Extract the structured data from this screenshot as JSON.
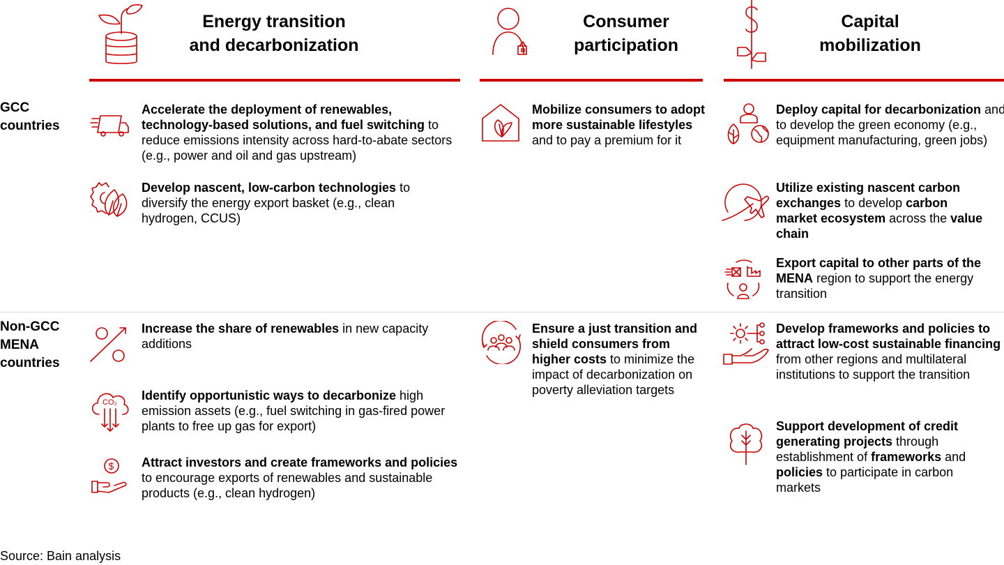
{
  "columns": [
    {
      "id": "energy",
      "title_line1": "Energy transition",
      "title_line2": "and decarbonization",
      "icon": "plant-coins-icon"
    },
    {
      "id": "consumer",
      "title_line1": "Consumer",
      "title_line2": "participation",
      "icon": "person-wallet-icon"
    },
    {
      "id": "capital",
      "title_line1": "Capital",
      "title_line2": "mobilization",
      "icon": "dollar-plant-icon"
    }
  ],
  "rows": [
    {
      "id": "gcc",
      "label_lines": [
        "GCC",
        "countries"
      ]
    },
    {
      "id": "nongcc",
      "label_lines": [
        "Non-GCC",
        "MENA",
        "countries"
      ]
    }
  ],
  "items": {
    "gcc_energy_1": {
      "icon": "truck-icon",
      "segments": [
        {
          "t": "Accelerate the deployment of renewables, technology-based solutions, and fuel switching",
          "b": true
        },
        {
          "t": " to reduce emissions intensity across hard-to-abate sectors (e.g., power and oil and gas upstream)",
          "b": false
        }
      ]
    },
    "gcc_energy_2": {
      "icon": "gear-leaf-icon",
      "segments": [
        {
          "t": "Develop nascent, low-carbon technologies",
          "b": true
        },
        {
          "t": " to diversify the energy export basket (e.g., clean hydrogen, CCUS)",
          "b": false
        }
      ]
    },
    "gcc_consumer_1": {
      "icon": "house-leaf-icon",
      "segments": [
        {
          "t": "Mobilize consumers to adopt more sustainable lifestyles",
          "b": true
        },
        {
          "t": " and to pay a premium for it",
          "b": false
        }
      ]
    },
    "gcc_capital_1": {
      "icon": "person-leaf-globe-icon",
      "segments": [
        {
          "t": "Deploy capital for decarbonization",
          "b": true
        },
        {
          "t": " and to develop the green economy (e.g., equipment manufacturing, green jobs)",
          "b": false
        }
      ]
    },
    "gcc_capital_2": {
      "icon": "plane-orbit-icon",
      "segments": [
        {
          "t": "Utilize existing nascent carbon exchanges",
          "b": true
        },
        {
          "t": " to develop ",
          "b": false
        },
        {
          "t": "carbon market ecosystem",
          "b": true
        },
        {
          "t": " across the ",
          "b": false
        },
        {
          "t": "value chain",
          "b": true
        }
      ]
    },
    "gcc_capital_3": {
      "icon": "export-cycle-icon",
      "segments": [
        {
          "t": "Export capital to other parts of the MENA",
          "b": true
        },
        {
          "t": " region to support the energy transition",
          "b": false
        }
      ]
    },
    "non_energy_1": {
      "icon": "percent-arrow-icon",
      "segments": [
        {
          "t": "Increase the share of renewables",
          "b": true
        },
        {
          "t": " in new capacity additions",
          "b": false
        }
      ]
    },
    "non_energy_2": {
      "icon": "co2-cloud-icon",
      "co2_label": "CO₂",
      "segments": [
        {
          "t": "Identify opportunistic ways to decarbonize",
          "b": true
        },
        {
          "t": " high emission assets (e.g., fuel switching in gas-fired power plants to free up gas for export)",
          "b": false
        }
      ]
    },
    "non_energy_3": {
      "icon": "hand-dollar-icon",
      "dollar": "$",
      "segments": [
        {
          "t": "Attract investors and create frameworks and policies",
          "b": true
        },
        {
          "t": " to encourage exports of renewables and sustainable products (e.g., clean hydrogen)",
          "b": false
        }
      ]
    },
    "non_consumer_1": {
      "icon": "people-cycle-icon",
      "segments": [
        {
          "t": "Ensure a just transition and shield consumers from higher costs",
          "b": true
        },
        {
          "t": " to minimize the impact of decarbonization on poverty alleviation targets",
          "b": false
        }
      ]
    },
    "non_capital_1": {
      "icon": "hand-gear-network-icon",
      "segments": [
        {
          "t": "Develop frameworks and policies to attract low-cost sustainable financing",
          "b": true
        },
        {
          "t": " from other regions and multilateral institutions to support the transition",
          "b": false
        }
      ]
    },
    "non_capital_2": {
      "icon": "tree-icon",
      "segments": [
        {
          "t": "Support development of credit generating projects",
          "b": true
        },
        {
          "t": " through establishment of ",
          "b": false
        },
        {
          "t": "frameworks",
          "b": true
        },
        {
          "t": " and ",
          "b": false
        },
        {
          "t": "policies",
          "b": true
        },
        {
          "t": " to participate in carbon markets",
          "b": false
        }
      ]
    }
  },
  "colors": {
    "accent": "#cc0000",
    "divider": "#d9d9d9",
    "text": "#000000"
  },
  "source": "Source: Bain analysis"
}
